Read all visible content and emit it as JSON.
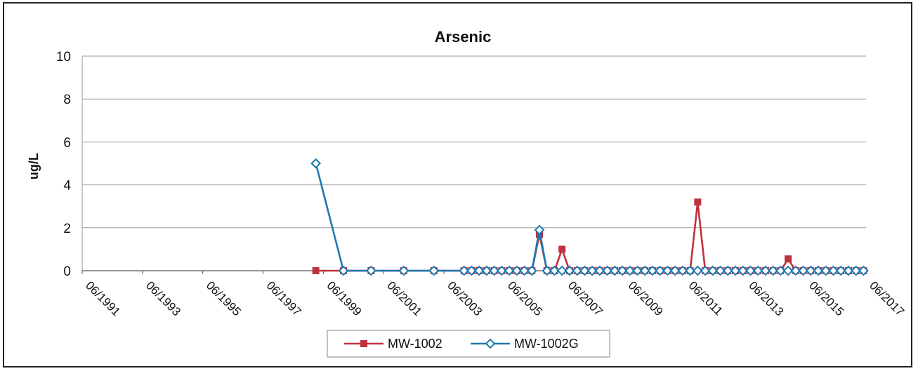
{
  "colors": {
    "mw1002": "#C0313E",
    "mw1002g": "#1F7AB0",
    "grid": "#9a9a9a",
    "axis": "#555555"
  },
  "chart_data": {
    "type": "line",
    "title": "Arsenic",
    "xlabel": "",
    "ylabel": "ug/L",
    "ylim": [
      0,
      10
    ],
    "yticks": [
      "0",
      "2",
      "4",
      "6",
      "8",
      "10"
    ],
    "xlim": [
      "1991-06",
      "2017-06"
    ],
    "xticks": [
      "06/1991",
      "06/1993",
      "06/1995",
      "06/1997",
      "06/1999",
      "06/2001",
      "06/2003",
      "06/2005",
      "06/2007",
      "06/2009",
      "06/2011",
      "06/2013",
      "06/2015",
      "06/2017"
    ],
    "grid": true,
    "legend_position": "bottom",
    "series": [
      {
        "name": "MW-1002",
        "color": "#C0313E",
        "marker": "square",
        "x": [
          "1999-03",
          "2000-02",
          "2001-01",
          "2002-02",
          "2003-02",
          "2004-02",
          "2004-05",
          "2004-08",
          "2004-11",
          "2005-02",
          "2005-05",
          "2005-08",
          "2005-11",
          "2006-02",
          "2006-05",
          "2006-08",
          "2006-11",
          "2007-02",
          "2007-05",
          "2007-08",
          "2007-11",
          "2008-02",
          "2008-05",
          "2008-08",
          "2008-11",
          "2009-02",
          "2009-05",
          "2009-08",
          "2009-11",
          "2010-02",
          "2010-05",
          "2010-08",
          "2010-11",
          "2011-02",
          "2011-05",
          "2011-08",
          "2011-11",
          "2012-02",
          "2012-05",
          "2012-08",
          "2012-11",
          "2013-02",
          "2013-05",
          "2013-08",
          "2013-11",
          "2014-02",
          "2014-05",
          "2014-08",
          "2014-11",
          "2015-02",
          "2015-05",
          "2015-08",
          "2015-11",
          "2016-02",
          "2016-05",
          "2016-08",
          "2016-11",
          "2017-02",
          "2017-05"
        ],
        "y": [
          0,
          0,
          0,
          0,
          0,
          0,
          0,
          0,
          0,
          0,
          0,
          0,
          0,
          0,
          0,
          1.7,
          0,
          0,
          1.0,
          0,
          0,
          0,
          0,
          0,
          0,
          0,
          0,
          0,
          0,
          0,
          0,
          0,
          0,
          0,
          0,
          0,
          3.2,
          0,
          0,
          0,
          0,
          0,
          0,
          0,
          0,
          0,
          0,
          0,
          0.55,
          0,
          0,
          0,
          0,
          0,
          0,
          0,
          0,
          0,
          0
        ]
      },
      {
        "name": "MW-1002G",
        "color": "#1F7AB0",
        "marker": "diamond",
        "x": [
          "1999-03",
          "2000-02",
          "2001-01",
          "2002-02",
          "2003-02",
          "2004-02",
          "2004-05",
          "2004-08",
          "2004-11",
          "2005-02",
          "2005-05",
          "2005-08",
          "2005-11",
          "2006-02",
          "2006-05",
          "2006-08",
          "2006-11",
          "2007-02",
          "2007-05",
          "2007-08",
          "2007-11",
          "2008-02",
          "2008-05",
          "2008-08",
          "2008-11",
          "2009-02",
          "2009-05",
          "2009-08",
          "2009-11",
          "2010-02",
          "2010-05",
          "2010-08",
          "2010-11",
          "2011-02",
          "2011-05",
          "2011-08",
          "2011-11",
          "2012-02",
          "2012-05",
          "2012-08",
          "2012-11",
          "2013-02",
          "2013-05",
          "2013-08",
          "2013-11",
          "2014-02",
          "2014-05",
          "2014-08",
          "2014-11",
          "2015-02",
          "2015-05",
          "2015-08",
          "2015-11",
          "2016-02",
          "2016-05",
          "2016-08",
          "2016-11",
          "2017-02",
          "2017-05"
        ],
        "y": [
          5.0,
          0,
          0,
          0,
          0,
          0,
          0,
          0,
          0,
          0,
          0,
          0,
          0,
          0,
          0,
          1.9,
          0,
          0,
          0,
          0,
          0,
          0,
          0,
          0,
          0,
          0,
          0,
          0,
          0,
          0,
          0,
          0,
          0,
          0,
          0,
          0,
          0,
          0,
          0,
          0,
          0,
          0,
          0,
          0,
          0,
          0,
          0,
          0,
          0,
          0,
          0,
          0,
          0,
          0,
          0,
          0,
          0,
          0,
          0
        ]
      }
    ]
  }
}
